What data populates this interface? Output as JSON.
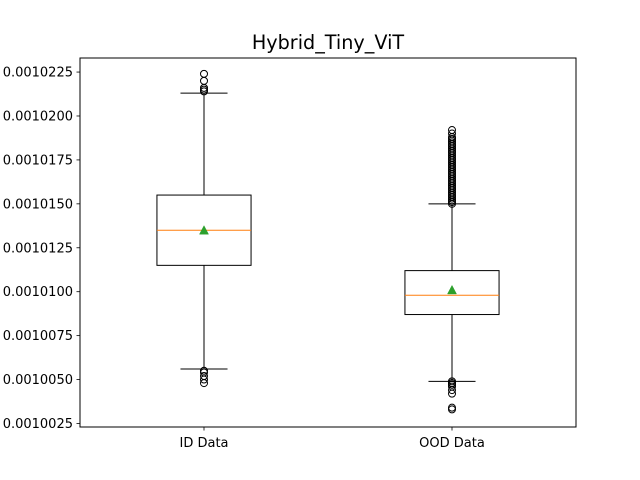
{
  "chart_data": {
    "type": "box",
    "title": "Hybrid_Tiny_ViT",
    "xlabel": "",
    "ylabel": "",
    "ylim": [
      0.0010023,
      0.0010233
    ],
    "yticks": [
      0.0010025,
      0.001005,
      0.0010075,
      0.00101,
      0.0010125,
      0.001015,
      0.0010175,
      0.00102,
      0.0010225
    ],
    "ytick_labels": [
      "0.0010025",
      "0.0010050",
      "0.0010075",
      "0.0010100",
      "0.0010125",
      "0.0010150",
      "0.0010175",
      "0.0010200",
      "0.0010225"
    ],
    "grid": false,
    "categories": [
      "ID Data",
      "OOD Data"
    ],
    "boxes": [
      {
        "category": "ID Data",
        "whisker_low": 0.0010056,
        "q1": 0.0010115,
        "median": 0.0010135,
        "mean": 0.0010135,
        "q3": 0.0010155,
        "whisker_high": 0.0010213,
        "outliers": [
          0.0010048,
          0.001005,
          0.0010052,
          0.0010054,
          0.0010055,
          0.0010214,
          0.0010215,
          0.0010216,
          0.001022,
          0.0010224
        ]
      },
      {
        "category": "OOD Data",
        "whisker_low": 0.0010049,
        "q1": 0.0010087,
        "median": 0.0010098,
        "mean": 0.0010101,
        "q3": 0.0010112,
        "whisker_high": 0.001015,
        "outliers": [
          0.0010033,
          0.0010034,
          0.0010042,
          0.0010044,
          0.0010046,
          0.0010047,
          0.0010048,
          0.0010048,
          0.0010049,
          0.001015,
          0.0010151,
          0.0010152,
          0.0010153,
          0.0010154,
          0.0010155,
          0.0010156,
          0.0010157,
          0.0010158,
          0.0010159,
          0.001016,
          0.0010161,
          0.0010162,
          0.0010163,
          0.0010164,
          0.0010165,
          0.0010166,
          0.0010167,
          0.0010168,
          0.0010169,
          0.001017,
          0.0010171,
          0.0010172,
          0.0010173,
          0.0010174,
          0.0010175,
          0.0010176,
          0.0010177,
          0.0010178,
          0.0010179,
          0.001018,
          0.0010181,
          0.0010182,
          0.0010183,
          0.0010184,
          0.0010185,
          0.0010186,
          0.0010187,
          0.0010188,
          0.001019,
          0.0010192
        ]
      }
    ],
    "colors": {
      "box": "#000000",
      "median": "#ff7f0e",
      "mean": "#2ca02c",
      "outlier": "#000000"
    }
  }
}
